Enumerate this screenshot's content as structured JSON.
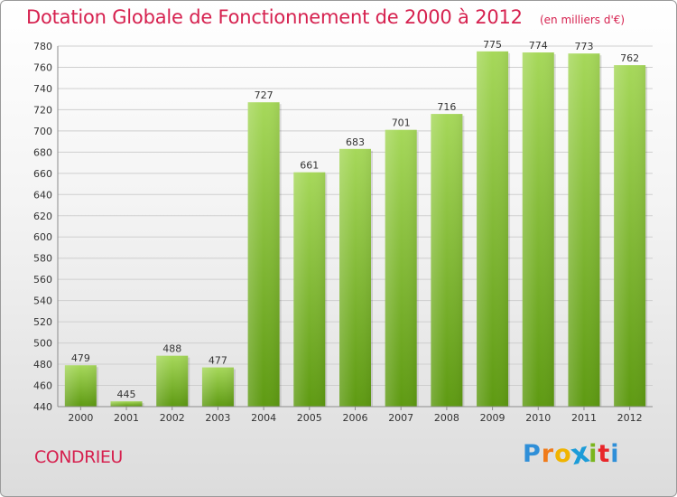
{
  "header": {
    "title": "Dotation Globale de Fonctionnement de 2000 à 2012",
    "unit": "(en milliers d'€)"
  },
  "footer": {
    "commune": "CONDRIEU",
    "logo_letters": [
      "P",
      "r",
      "o",
      "x",
      "i",
      "t",
      "i"
    ],
    "logo_colors": [
      "#2f8fd8",
      "#f07b1a",
      "#f0b400",
      "#1c9cd8",
      "#7ab51d",
      "#e8262a",
      "#2f8fd8"
    ]
  },
  "colors": {
    "bar_top": "#a6d85a",
    "bar_bottom": "#5e9a12",
    "grid": "#cfcfcf",
    "axis_text": "#333333"
  },
  "chart_data": {
    "type": "bar",
    "title": "Dotation Globale de Fonctionnement de 2000 à 2012",
    "xlabel": "",
    "ylabel": "",
    "categories": [
      "2000",
      "2001",
      "2002",
      "2003",
      "2004",
      "2005",
      "2006",
      "2007",
      "2008",
      "2009",
      "2010",
      "2011",
      "2012"
    ],
    "values": [
      479,
      445,
      488,
      477,
      727,
      661,
      683,
      701,
      716,
      775,
      774,
      773,
      762
    ],
    "ylim": [
      440,
      780
    ],
    "yticks": [
      440,
      460,
      480,
      500,
      520,
      540,
      560,
      580,
      600,
      620,
      640,
      660,
      680,
      700,
      720,
      740,
      760,
      780
    ],
    "grid": true,
    "legend": "none"
  }
}
